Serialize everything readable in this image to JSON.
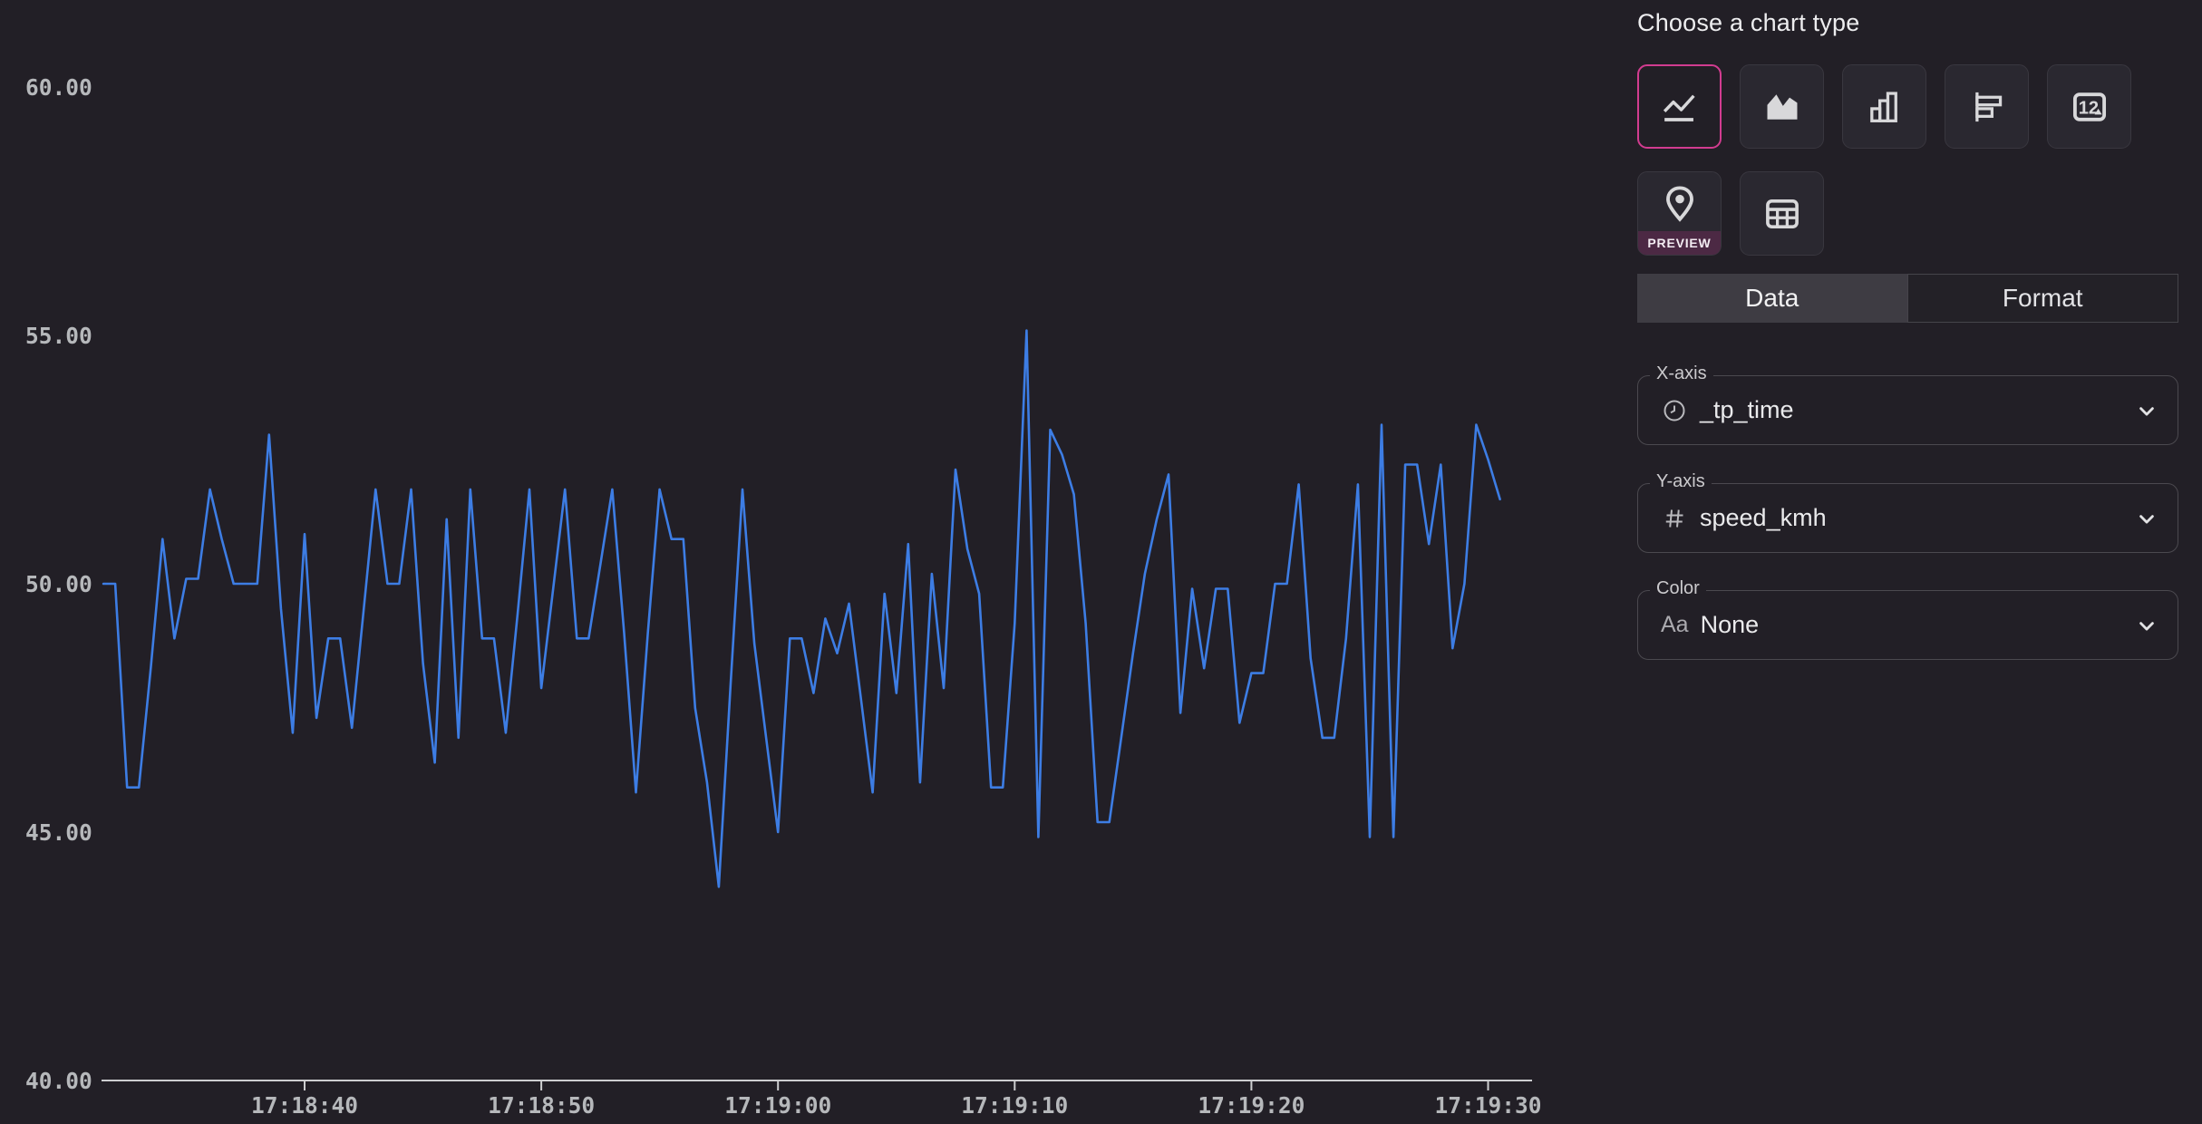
{
  "chart_data": {
    "type": "line",
    "title": "",
    "x_field": "_tp_time",
    "y_field": "speed_kmh",
    "line_color": "#3D7DE4",
    "ylim": [
      40,
      60
    ],
    "y_ticks": [
      "60.00",
      "55.00",
      "50.00",
      "45.00",
      "40.00"
    ],
    "y_tick_values": [
      60,
      55,
      50,
      45,
      40
    ],
    "x_tick_labels": [
      "17:18:40",
      "17:18:50",
      "17:19:00",
      "17:19:10",
      "17:19:20",
      "17:19:30"
    ],
    "x_tick_seconds": [
      40,
      50,
      60,
      70,
      80,
      90
    ],
    "start_second": 31.5,
    "step_seconds": 0.5,
    "values": [
      50.0,
      50.0,
      45.9,
      45.9,
      48.3,
      50.9,
      48.9,
      50.1,
      50.1,
      51.9,
      50.9,
      50.0,
      50.0,
      50.0,
      53.0,
      49.5,
      47.0,
      51.0,
      47.3,
      48.9,
      48.9,
      47.1,
      49.5,
      51.9,
      50.0,
      50.0,
      51.9,
      48.4,
      46.4,
      51.3,
      46.9,
      51.9,
      48.9,
      48.9,
      47.0,
      49.4,
      51.9,
      47.9,
      49.9,
      51.9,
      48.9,
      48.9,
      50.4,
      51.9,
      49.0,
      45.8,
      49.0,
      51.9,
      50.9,
      50.9,
      47.5,
      46.0,
      43.9,
      48.0,
      51.9,
      48.8,
      46.9,
      45.0,
      48.9,
      48.9,
      47.8,
      49.3,
      48.6,
      49.6,
      47.7,
      45.8,
      49.8,
      47.8,
      50.8,
      46.0,
      50.2,
      47.9,
      52.3,
      50.7,
      49.8,
      45.9,
      45.9,
      49.2,
      55.1,
      44.9,
      53.1,
      52.6,
      51.8,
      49.2,
      45.2,
      45.2,
      46.9,
      48.6,
      50.2,
      51.3,
      52.2,
      47.4,
      49.9,
      48.3,
      49.9,
      49.9,
      47.2,
      48.2,
      48.2,
      50.0,
      50.0,
      52.0,
      48.5,
      46.9,
      46.9,
      48.9,
      52.0,
      44.9,
      53.2,
      44.9,
      52.4,
      52.4,
      50.8,
      52.4,
      48.7,
      50.0,
      53.2,
      52.5,
      51.7
    ]
  },
  "panel": {
    "title": "Choose a chart type",
    "chart_types": [
      {
        "name": "line",
        "selected": true
      },
      {
        "name": "area",
        "selected": false
      },
      {
        "name": "bar",
        "selected": false
      },
      {
        "name": "horizontal-bar",
        "selected": false
      },
      {
        "name": "single-value",
        "selected": false
      },
      {
        "name": "map",
        "selected": false,
        "badge": "PREVIEW"
      },
      {
        "name": "table",
        "selected": false
      }
    ],
    "tabs": [
      {
        "label": "Data",
        "selected": true
      },
      {
        "label": "Format",
        "selected": false
      }
    ],
    "fields": [
      {
        "label": "X-axis",
        "icon": "clock",
        "value": "_tp_time"
      },
      {
        "label": "Y-axis",
        "icon": "hash",
        "value": "speed_kmh"
      },
      {
        "label": "Color",
        "icon": "Aa",
        "value": "None"
      }
    ],
    "colors": {
      "accent_pink": "#D23C90",
      "line_blue": "#3D7DE4",
      "badge_bg": "#4C2944",
      "background": "#221F26"
    }
  }
}
